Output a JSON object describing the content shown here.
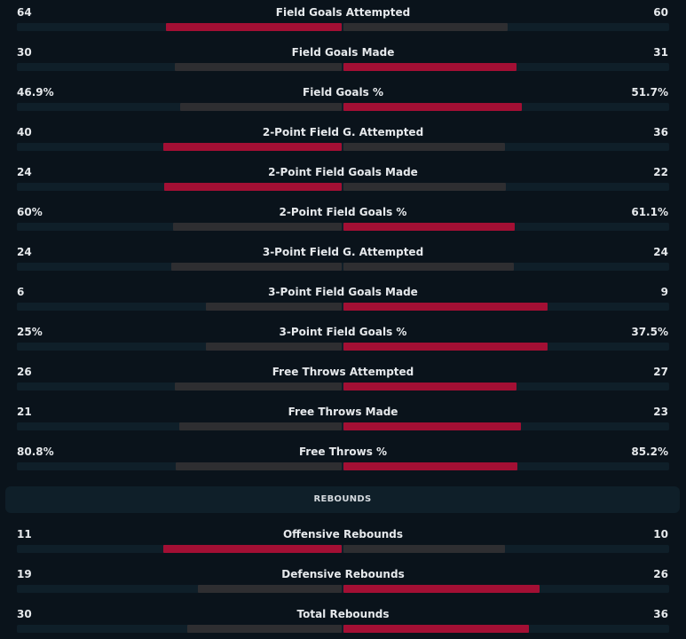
{
  "colors": {
    "winner": "#a30f34",
    "loser": "#2e2e31",
    "track": "#0f1f29",
    "background": "#0a131b"
  },
  "shooting": [
    {
      "label": "Field Goals Attempted",
      "home": "64",
      "away": "60",
      "home_share": 0.516,
      "away_share": 0.484,
      "leader": "home"
    },
    {
      "label": "Field Goals Made",
      "home": "30",
      "away": "31",
      "home_share": 0.492,
      "away_share": 0.508,
      "leader": "away"
    },
    {
      "label": "Field Goals %",
      "home": "46.9%",
      "away": "51.7%",
      "home_share": 0.476,
      "away_share": 0.524,
      "leader": "away"
    },
    {
      "label": "2-Point Field G. Attempted",
      "home": "40",
      "away": "36",
      "home_share": 0.526,
      "away_share": 0.474,
      "leader": "home"
    },
    {
      "label": "2-Point Field Goals Made",
      "home": "24",
      "away": "22",
      "home_share": 0.522,
      "away_share": 0.478,
      "leader": "home"
    },
    {
      "label": "2-Point Field Goals %",
      "home": "60%",
      "away": "61.1%",
      "home_share": 0.495,
      "away_share": 0.505,
      "leader": "away"
    },
    {
      "label": "3-Point Field G. Attempted",
      "home": "24",
      "away": "24",
      "home_share": 0.5,
      "away_share": 0.5,
      "leader": "none"
    },
    {
      "label": "3-Point Field Goals Made",
      "home": "6",
      "away": "9",
      "home_share": 0.4,
      "away_share": 0.6,
      "leader": "away"
    },
    {
      "label": "3-Point Field Goals %",
      "home": "25%",
      "away": "37.5%",
      "home_share": 0.4,
      "away_share": 0.6,
      "leader": "away"
    },
    {
      "label": "Free Throws Attempted",
      "home": "26",
      "away": "27",
      "home_share": 0.491,
      "away_share": 0.509,
      "leader": "away"
    },
    {
      "label": "Free Throws Made",
      "home": "21",
      "away": "23",
      "home_share": 0.477,
      "away_share": 0.523,
      "leader": "away"
    },
    {
      "label": "Free Throws %",
      "home": "80.8%",
      "away": "85.2%",
      "home_share": 0.487,
      "away_share": 0.513,
      "leader": "away"
    }
  ],
  "rebounds_section": {
    "title": "REBOUNDS"
  },
  "rebounds": [
    {
      "label": "Offensive Rebounds",
      "home": "11",
      "away": "10",
      "home_share": 0.524,
      "away_share": 0.476,
      "leader": "home"
    },
    {
      "label": "Defensive Rebounds",
      "home": "19",
      "away": "26",
      "home_share": 0.422,
      "away_share": 0.578,
      "leader": "away"
    },
    {
      "label": "Total Rebounds",
      "home": "30",
      "away": "36",
      "home_share": 0.455,
      "away_share": 0.545,
      "leader": "away"
    }
  ]
}
